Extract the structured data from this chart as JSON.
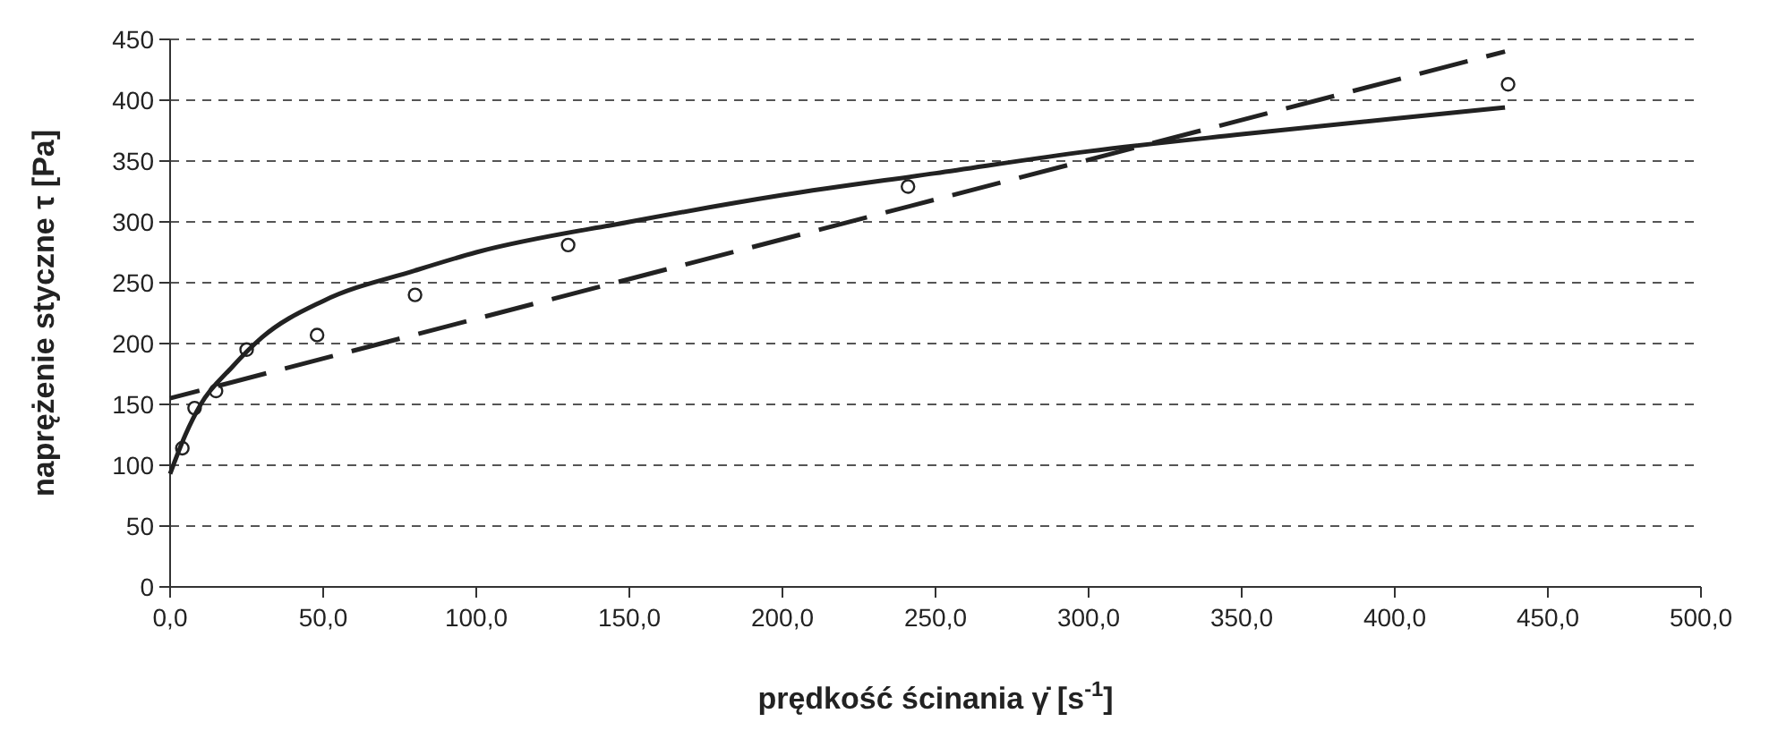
{
  "chart_data": {
    "type": "scatter",
    "xlabel": "prędkość ścinania γ̇ [s$^{-1}$]",
    "ylabel": "naprężenie styczne  τ  [Pa]",
    "xlim": [
      0,
      500
    ],
    "ylim": [
      0,
      450
    ],
    "xticks": [
      {
        "value": 0,
        "label": "0,0"
      },
      {
        "value": 50,
        "label": "50,0"
      },
      {
        "value": 100,
        "label": "100,0"
      },
      {
        "value": 150,
        "label": "150,0"
      },
      {
        "value": 200,
        "label": "200,0"
      },
      {
        "value": 250,
        "label": "250,0"
      },
      {
        "value": 300,
        "label": "300,0"
      },
      {
        "value": 350,
        "label": "350,0"
      },
      {
        "value": 400,
        "label": "400,0"
      },
      {
        "value": 450,
        "label": "450,0"
      },
      {
        "value": 500,
        "label": "500,0"
      }
    ],
    "yticks": [
      0,
      50,
      100,
      150,
      200,
      250,
      300,
      350,
      400,
      450
    ],
    "grid": "y",
    "series": [
      {
        "color": "#222222",
        "marker": "circle",
        "x": [
          4,
          8,
          15,
          25,
          48,
          80,
          130,
          241,
          437
        ],
        "values": [
          114,
          147,
          161,
          195,
          207,
          240,
          281,
          329,
          413
        ]
      },
      {
        "type": "line",
        "color": "#222222",
        "line_style": "solid",
        "marker": "none",
        "x": [
          0,
          5,
          10,
          20,
          30,
          50,
          80,
          100,
          150,
          200,
          250,
          300,
          350,
          400,
          436
        ],
        "values": [
          93,
          125,
          150,
          180,
          205,
          235,
          260,
          275,
          300,
          322,
          340,
          358,
          372,
          385,
          394
        ]
      },
      {
        "type": "line",
        "color": "#222222",
        "line_style": "dashed",
        "marker": "none",
        "x": [
          0,
          436
        ],
        "values": [
          155,
          440
        ]
      }
    ]
  }
}
